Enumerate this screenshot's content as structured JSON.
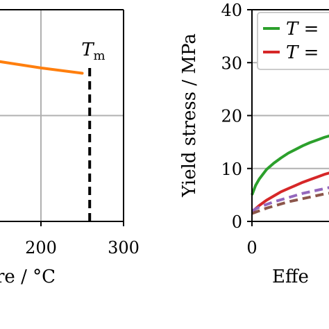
{
  "chart_data": [
    {
      "type": "line",
      "xlabel": "re / °C",
      "xlim": [
        100,
        300
      ],
      "xticks": [
        "200",
        "300"
      ],
      "ylim": [
        0,
        20
      ],
      "grid": true,
      "series": [
        {
          "color": "#ff7f0e",
          "x": [
            80,
            150,
            200,
            250
          ],
          "y": [
            15.6,
            15.1,
            14.5,
            14.0
          ]
        }
      ],
      "tm_marker": {
        "label": "T",
        "subscript": "m",
        "x": 259
      }
    },
    {
      "type": "line",
      "xlabel": "Effe",
      "ylabel": "Yield stress / MPa",
      "xlim": [
        0,
        15
      ],
      "ylim": [
        0,
        40
      ],
      "yticks": [
        "0",
        "10",
        "20",
        "30",
        "40"
      ],
      "xticks": [
        "0"
      ],
      "grid": true,
      "legend": {
        "placement": "top-right",
        "entries": [
          {
            "text": "T =",
            "color": "#2ca02c"
          },
          {
            "text": "T =",
            "color": "#d62728"
          }
        ]
      },
      "series": [
        {
          "color": "#2ca02c",
          "dashed": false,
          "x": [
            0,
            0.5,
            1,
            2,
            3,
            4,
            5,
            6,
            7,
            8,
            9,
            10,
            11,
            12,
            13,
            14,
            15
          ],
          "y": [
            5.0,
            6.8,
            8.0,
            9.8,
            11.0,
            12.0,
            12.9,
            13.6,
            14.3,
            14.9,
            15.4,
            15.9,
            16.3,
            16.8,
            17.2,
            17.6,
            18.0
          ]
        },
        {
          "color": "#d62728",
          "dashed": false,
          "x": [
            0,
            1,
            2,
            3,
            4,
            5,
            6,
            7,
            8,
            9,
            10,
            11,
            12,
            13,
            14,
            15
          ],
          "y": [
            1.8,
            3.0,
            4.0,
            4.8,
            5.6,
            6.2,
            6.8,
            7.4,
            7.9,
            8.4,
            8.9,
            9.3,
            9.7,
            10.1,
            10.5,
            10.9
          ]
        },
        {
          "color": "#9467bd",
          "dashed": true,
          "x": [
            0,
            1,
            2,
            3,
            4,
            5,
            6,
            7,
            8,
            9,
            10,
            11,
            12,
            13,
            14,
            15
          ],
          "y": [
            2.0,
            2.7,
            3.2,
            3.7,
            4.1,
            4.5,
            4.9,
            5.3,
            5.6,
            5.9,
            6.2,
            6.5,
            6.8,
            7.0,
            7.2,
            7.4
          ]
        },
        {
          "color": "#8c564b",
          "dashed": true,
          "x": [
            0,
            1,
            2,
            3,
            4,
            5,
            6,
            7,
            8,
            9,
            10,
            11,
            12,
            13,
            14,
            15
          ],
          "y": [
            1.5,
            2.0,
            2.5,
            2.9,
            3.3,
            3.7,
            4.0,
            4.3,
            4.6,
            4.9,
            5.2,
            5.4,
            5.6,
            5.8,
            6.0,
            6.2
          ]
        }
      ]
    }
  ]
}
